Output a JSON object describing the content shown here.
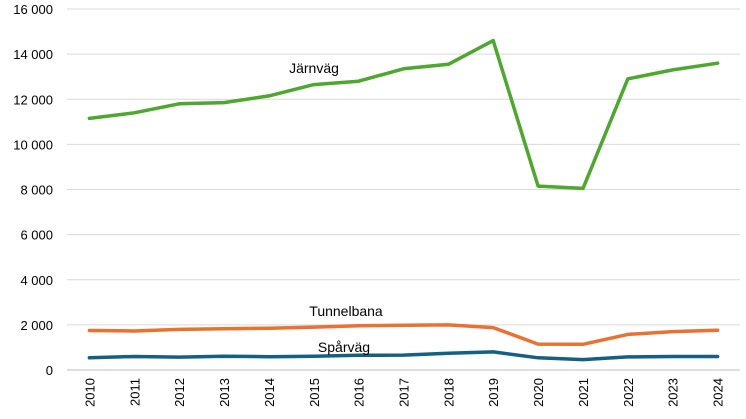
{
  "chart_data": {
    "type": "line",
    "categories": [
      "2010",
      "2011",
      "2012",
      "2013",
      "2014",
      "2015",
      "2016",
      "2017",
      "2018",
      "2019",
      "2020",
      "2021",
      "2022",
      "2023",
      "2024"
    ],
    "ylim": [
      0,
      16000
    ],
    "yticks": [
      0,
      2000,
      4000,
      6000,
      8000,
      10000,
      12000,
      14000,
      16000
    ],
    "ytick_labels": [
      "0",
      "2 000",
      "4 000",
      "6 000",
      "8 000",
      "10 000",
      "12 000",
      "14 000",
      "16 000"
    ],
    "grid": true,
    "legend": "none (inline labels)",
    "series": [
      {
        "name": "Järnväg",
        "color": "#4ea72e",
        "values": [
          11150,
          11400,
          11800,
          11850,
          12150,
          12650,
          12800,
          13350,
          13550,
          14600,
          8150,
          8050,
          12900,
          13300,
          13600
        ]
      },
      {
        "name": "Tunnelbana",
        "color": "#e97132",
        "values": [
          1750,
          1730,
          1800,
          1830,
          1850,
          1900,
          1960,
          1980,
          2000,
          1880,
          1150,
          1140,
          1580,
          1700,
          1760
        ]
      },
      {
        "name": "Spårväg",
        "color": "#156082",
        "values": [
          540,
          600,
          570,
          610,
          590,
          610,
          650,
          660,
          740,
          800,
          540,
          460,
          580,
          600,
          600
        ]
      }
    ]
  }
}
